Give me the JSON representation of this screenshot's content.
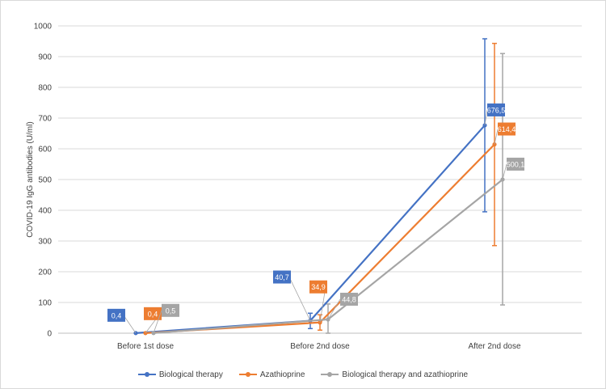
{
  "chart_data": {
    "type": "line",
    "title": "",
    "xlabel": "",
    "ylabel": "COVID-19 IgG antibodies (U/ml)",
    "categories": [
      "Before 1st dose",
      "Before 2nd dose",
      "After 2nd dose"
    ],
    "ylim": [
      0,
      1000
    ],
    "yticks": [
      0,
      100,
      200,
      300,
      400,
      500,
      600,
      700,
      800,
      900,
      1000
    ],
    "grid": true,
    "legend_position": "bottom",
    "series": [
      {
        "name": "Biological therapy",
        "color": "#4472C4",
        "values": [
          0.4,
          40.7,
          676.5
        ],
        "labels": [
          "0,4",
          "40,7",
          "676,5"
        ],
        "error_low": [
          null,
          15,
          395
        ],
        "error_high": [
          null,
          65,
          958
        ]
      },
      {
        "name": "Azathioprine",
        "color": "#ED7D31",
        "values": [
          0.4,
          34.9,
          614.4
        ],
        "labels": [
          "0,4",
          "34,9",
          "614,4"
        ],
        "error_low": [
          null,
          10,
          285
        ],
        "error_high": [
          null,
          60,
          943
        ]
      },
      {
        "name": "Biological therapy and azathioprine",
        "color": "#A5A5A5",
        "values": [
          0.5,
          44.8,
          500.1
        ],
        "labels": [
          "0,5",
          "44,8",
          "500,1"
        ],
        "error_low": [
          null,
          0,
          92
        ],
        "error_high": [
          null,
          95,
          910
        ]
      }
    ]
  }
}
